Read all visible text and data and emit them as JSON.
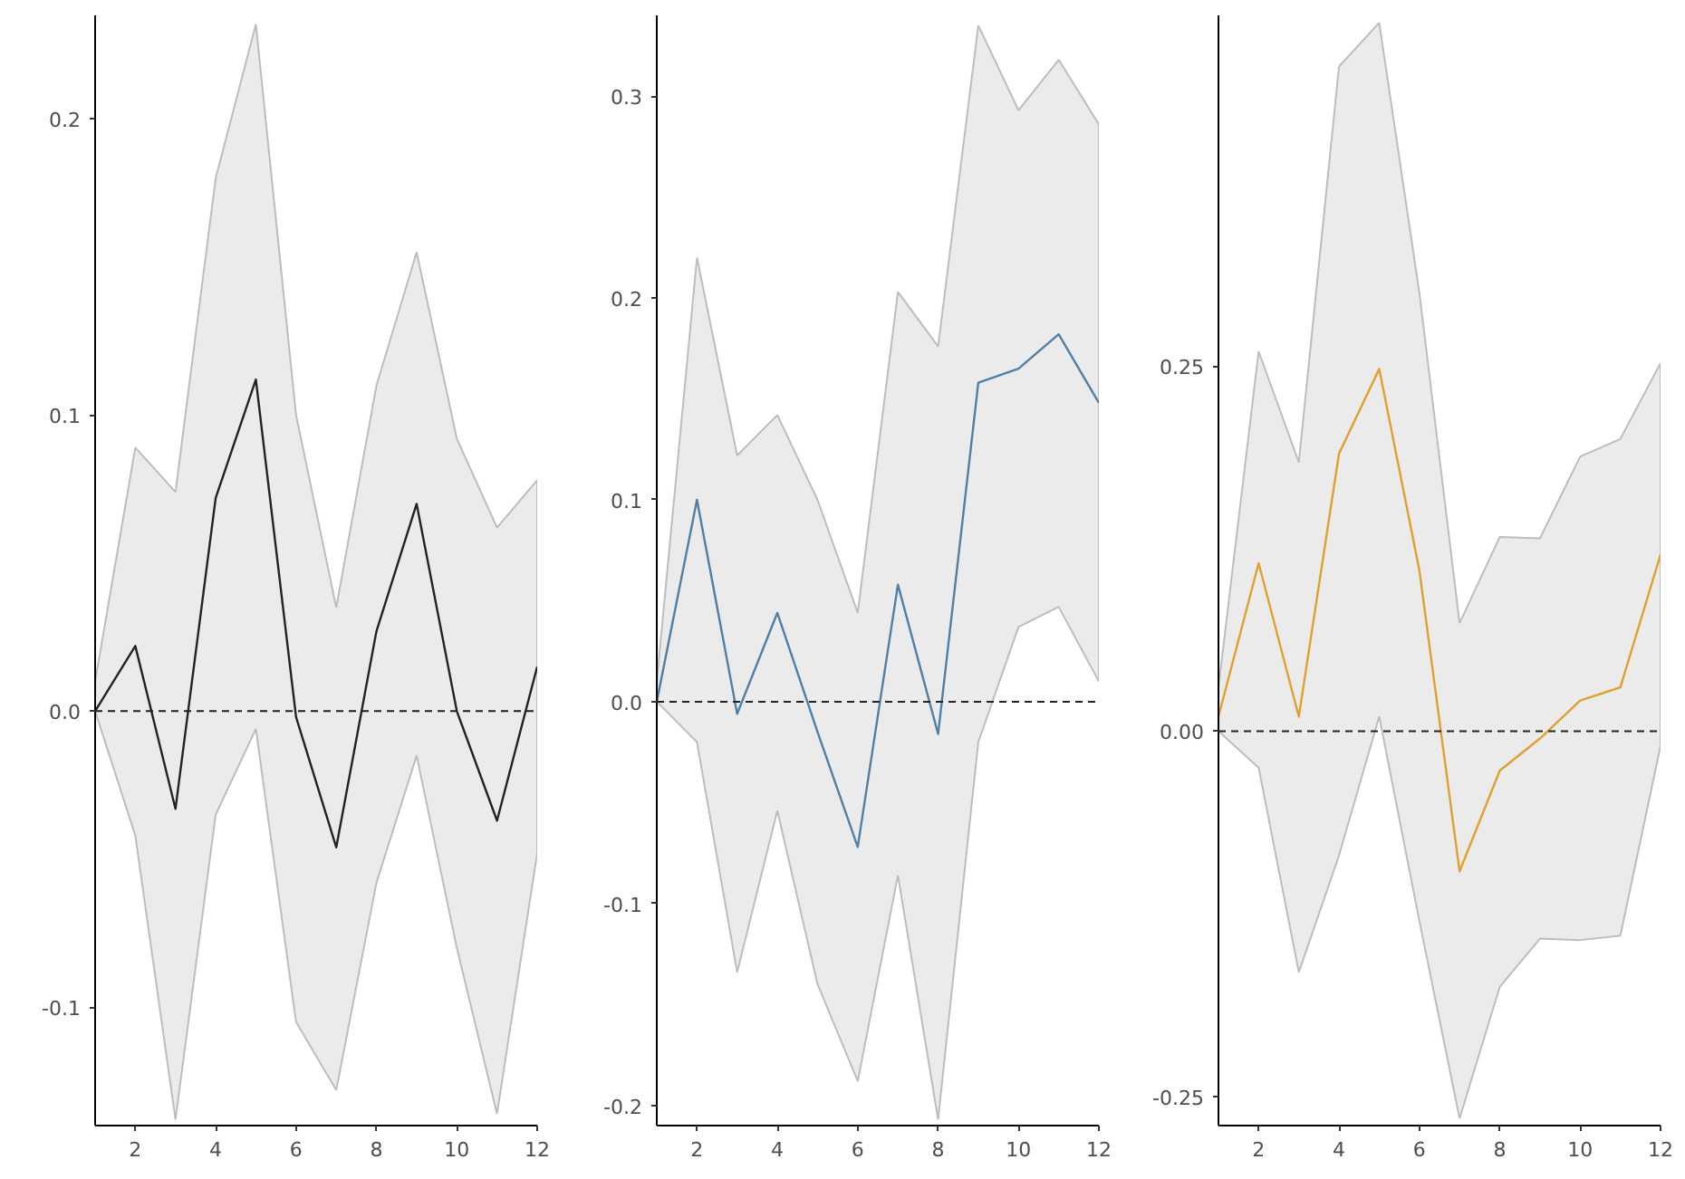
{
  "chart_data": [
    {
      "type": "line",
      "x": [
        1,
        2,
        3,
        4,
        5,
        6,
        7,
        8,
        9,
        10,
        11,
        12
      ],
      "xlim": [
        1,
        12
      ],
      "xticks": [
        2,
        4,
        6,
        8,
        10,
        12
      ],
      "ylim": [
        -0.14,
        0.235
      ],
      "yticks": [
        -0.1,
        {
          "value": 0,
          "label": "0.0"
        },
        0.1,
        0.2
      ],
      "grid": false,
      "series": [
        {
          "color": "#222222",
          "values": [
            0,
            0.022,
            -0.033,
            0.072,
            0.112,
            -0.002,
            -0.046,
            0.027,
            0.07,
            0.0,
            -0.037,
            0.015
          ],
          "upper": [
            0.01,
            0.089,
            0.074,
            0.18,
            0.232,
            0.1,
            0.035,
            0.11,
            0.155,
            0.092,
            0.062,
            0.078
          ],
          "lower": [
            0,
            -0.042,
            -0.138,
            -0.035,
            -0.006,
            -0.105,
            -0.128,
            -0.058,
            -0.015,
            -0.08,
            -0.136,
            -0.048
          ]
        }
      ],
      "ref_lines": [
        {
          "axis": "y",
          "value": 0,
          "line_style": "dashed",
          "color": "#222222"
        }
      ]
    },
    {
      "type": "line",
      "x": [
        1,
        2,
        3,
        4,
        5,
        6,
        7,
        8,
        9,
        10,
        11,
        12
      ],
      "xlim": [
        1,
        12
      ],
      "xticks": [
        2,
        4,
        6,
        8,
        10,
        12
      ],
      "ylim": [
        -0.21,
        0.34
      ],
      "yticks": [
        -0.2,
        -0.1,
        {
          "value": 0,
          "label": "0.0"
        },
        0.1,
        0.2,
        0.3
      ],
      "grid": false,
      "series": [
        {
          "color": "#4f7fa6",
          "values": [
            0,
            0.1,
            -0.006,
            0.044,
            -0.015,
            -0.072,
            0.058,
            -0.016,
            0.158,
            0.165,
            0.182,
            0.148
          ],
          "upper": [
            0.01,
            0.22,
            0.122,
            0.142,
            0.1,
            0.044,
            0.203,
            0.176,
            0.335,
            0.293,
            0.318,
            0.286
          ],
          "lower": [
            0,
            -0.02,
            -0.134,
            -0.054,
            -0.14,
            -0.188,
            -0.086,
            -0.207,
            -0.02,
            0.037,
            0.047,
            0.01
          ]
        }
      ],
      "ref_lines": [
        {
          "axis": "y",
          "value": 0,
          "line_style": "dashed",
          "color": "#222222"
        }
      ]
    },
    {
      "type": "line",
      "x": [
        1,
        2,
        3,
        4,
        5,
        6,
        7,
        8,
        9,
        10,
        11,
        12
      ],
      "xlim": [
        1,
        12
      ],
      "xticks": [
        2,
        4,
        6,
        8,
        10,
        12
      ],
      "ylim": [
        -0.27,
        0.49
      ],
      "yticks": [
        {
          "value": -0.25,
          "label": "-0.25"
        },
        {
          "value": 0,
          "label": "0.00"
        },
        {
          "value": 0.25,
          "label": "0.25"
        }
      ],
      "grid": false,
      "series": [
        {
          "color": "#e0a030",
          "values": [
            0.01,
            0.115,
            0.01,
            0.19,
            0.248,
            0.11,
            -0.096,
            -0.027,
            -0.005,
            0.021,
            0.03,
            0.121
          ],
          "upper": [
            0.03,
            0.26,
            0.184,
            0.455,
            0.485,
            0.3,
            0.074,
            0.133,
            0.132,
            0.188,
            0.2,
            0.252
          ],
          "lower": [
            0.0,
            -0.025,
            -0.165,
            -0.085,
            0.01,
            -0.13,
            -0.265,
            -0.175,
            -0.142,
            -0.143,
            -0.14,
            -0.01
          ]
        }
      ],
      "ref_lines": [
        {
          "axis": "y",
          "value": 0,
          "line_style": "dashed",
          "color": "#222222"
        }
      ]
    }
  ]
}
